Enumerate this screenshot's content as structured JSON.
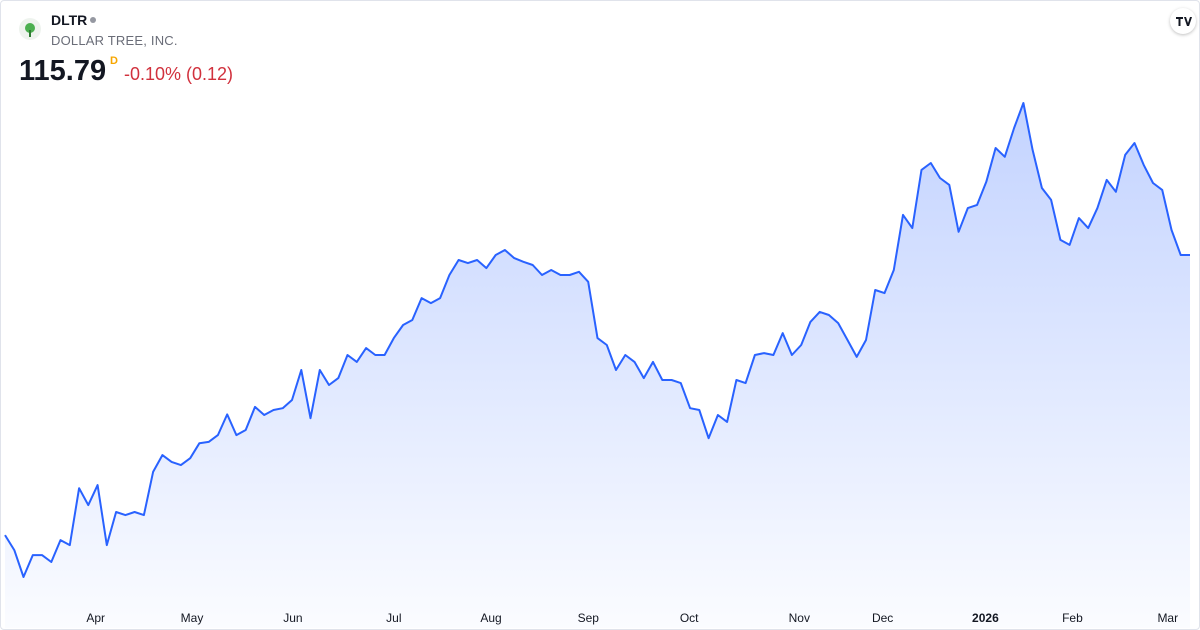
{
  "header": {
    "symbol": "DLTR",
    "company": "DOLLAR TREE, INC.",
    "price": "115.79",
    "interval": "D",
    "change": "-0.10% (0.12)"
  },
  "chart_data": {
    "type": "area",
    "color": "#2962ff",
    "values": [
      71.0,
      68.6,
      64.3,
      67.8,
      67.8,
      66.7,
      70.2,
      69.4,
      78.5,
      75.8,
      79.0,
      69.4,
      74.7,
      74.2,
      74.7,
      74.2,
      81.1,
      83.8,
      82.7,
      82.2,
      83.3,
      85.7,
      85.9,
      87.0,
      90.3,
      87.0,
      87.8,
      91.5,
      90.2,
      91.0,
      91.3,
      92.6,
      97.4,
      89.7,
      97.4,
      95.0,
      96.1,
      99.8,
      98.7,
      100.9,
      99.8,
      99.8,
      102.5,
      104.6,
      105.4,
      108.9,
      108.1,
      108.9,
      112.6,
      115.0,
      114.5,
      115.0,
      113.7,
      115.8,
      116.6,
      115.3,
      114.7,
      114.2,
      112.6,
      113.4,
      112.6,
      112.6,
      113.1,
      111.5,
      102.5,
      101.4,
      97.4,
      99.8,
      98.7,
      96.1,
      98.7,
      95.8,
      95.8,
      95.3,
      91.3,
      91.0,
      86.5,
      90.2,
      89.1,
      95.8,
      95.3,
      99.8,
      100.1,
      99.8,
      103.3,
      99.8,
      101.4,
      105.1,
      106.7,
      106.2,
      104.9,
      102.2,
      99.5,
      102.2,
      110.2,
      109.7,
      113.4,
      122.2,
      120.1,
      129.4,
      130.5,
      128.1,
      127.0,
      119.5,
      123.3,
      123.8,
      127.5,
      132.9,
      131.5,
      136.1,
      140.1,
      132.6,
      126.5,
      124.6,
      118.2,
      117.4,
      121.7,
      120.1,
      123.3,
      127.8,
      125.9,
      131.8,
      133.7,
      130.2,
      127.3,
      126.2,
      119.8,
      115.8,
      115.79
    ],
    "xlim": [
      0,
      128
    ],
    "xticks": [
      {
        "value": 9.8,
        "label": "Apr"
      },
      {
        "value": 20.2,
        "label": "May"
      },
      {
        "value": 31.1,
        "label": "Jun"
      },
      {
        "value": 42,
        "label": "Jul"
      },
      {
        "value": 52.5,
        "label": "Aug"
      },
      {
        "value": 63,
        "label": "Sep"
      },
      {
        "value": 73.9,
        "label": "Oct"
      },
      {
        "value": 85.8,
        "label": "Nov"
      },
      {
        "value": 94.8,
        "label": "Dec"
      },
      {
        "value": 105.9,
        "label": "2026"
      },
      {
        "value": 115.3,
        "label": "Feb"
      },
      {
        "value": 125.6,
        "label": "Mar"
      }
    ]
  }
}
